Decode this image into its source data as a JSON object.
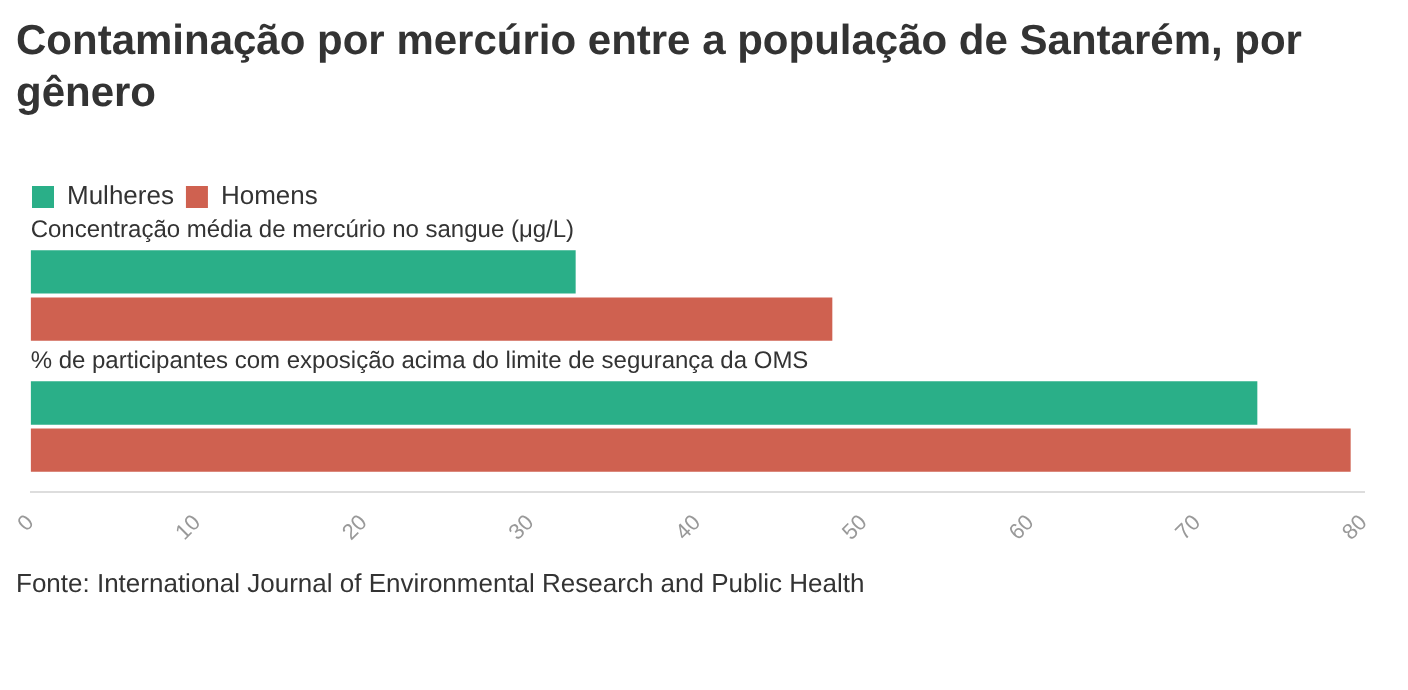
{
  "chart_data": {
    "type": "bar",
    "orientation": "horizontal",
    "title": "Contaminação por mercúrio entre a população de Santarém, por gênero",
    "categories": [
      "Concentração média de mercúrio no sangue (μg/L)",
      "% de participantes com exposição acima do limite de segurança da OMS"
    ],
    "series": [
      {
        "name": "Mulheres",
        "color": "#2aaf88",
        "values": [
          32.7,
          73.6
        ]
      },
      {
        "name": "Homens",
        "color": "#cf6150",
        "values": [
          48.1,
          79.2
        ]
      }
    ],
    "xlim": [
      0,
      80
    ],
    "xticks": [
      0,
      10,
      20,
      30,
      40,
      50,
      60,
      70,
      80
    ],
    "grid": false,
    "legend": "top left",
    "annotations": [
      "Fonte: International Journal of Environmental Research and Public Health"
    ]
  }
}
